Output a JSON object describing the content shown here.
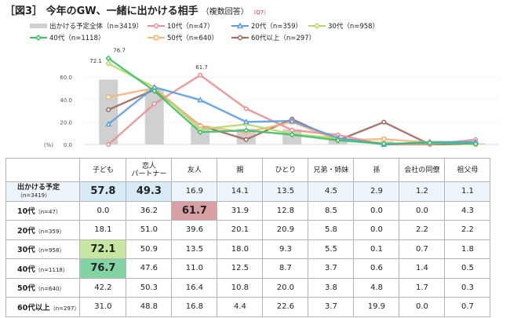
{
  "title": {
    "main": "［図3］ 今年のGW、一緒に出かける相手",
    "sub": "（複数回答）",
    "q": "（Q7）"
  },
  "colors": {
    "total": "#d0d0d0",
    "10s": "#e8908f",
    "20s": "#5c9fe0",
    "30s": "#b8d86a",
    "40s": "#3ec06a",
    "50s": "#f4b67a",
    "60s": "#a0695e",
    "hl_total": "#d7ebf7",
    "hl_10s": "#d8a0a4",
    "hl_30s": "#c6e6a1",
    "hl_40s": "#84d3a2"
  },
  "legend": [
    {
      "label": "出かける予定全体（n=3419）",
      "key": "total",
      "marker": "bar"
    },
    {
      "label": "10代（n=47）",
      "key": "10s",
      "marker": "circle"
    },
    {
      "label": "20代（n=359）",
      "key": "20s",
      "marker": "triangle"
    },
    {
      "label": "30代（n=958）",
      "key": "30s",
      "marker": "diamond"
    },
    {
      "label": "40代（n=1118）",
      "key": "40s",
      "marker": "diamond"
    },
    {
      "label": "50代（n=640）",
      "key": "50s",
      "marker": "square"
    },
    {
      "label": "60代以上（n=297）",
      "key": "60s",
      "marker": "circle"
    }
  ],
  "chart_data": {
    "type": "bar",
    "unit": "(%)",
    "ylim": [
      0,
      80
    ],
    "yticks": [
      "0.0",
      "20.0",
      "40.0",
      "60.0"
    ],
    "categories": [
      "子ども",
      "恋人\nパートナー",
      "友人",
      "親",
      "ひとり",
      "兄弟・姉妹",
      "孫",
      "会社の同僚",
      "祖父母"
    ],
    "bar_series": {
      "name": "出かける予定全体",
      "key": "total",
      "values": [
        57.8,
        49.3,
        16.9,
        14.1,
        13.5,
        4.5,
        2.9,
        1.2,
        1.1
      ]
    },
    "line_series": [
      {
        "name": "10代",
        "key": "10s",
        "marker": "circle",
        "values": [
          0.0,
          36.2,
          61.7,
          31.9,
          12.8,
          8.5,
          0.0,
          0.0,
          4.3
        ]
      },
      {
        "name": "20代",
        "key": "20s",
        "marker": "triangle",
        "values": [
          18.1,
          51.0,
          39.6,
          20.1,
          20.9,
          5.8,
          0.0,
          2.2,
          2.2
        ]
      },
      {
        "name": "30代",
        "key": "30s",
        "marker": "diamond",
        "values": [
          72.1,
          50.9,
          13.5,
          18.0,
          9.3,
          5.5,
          0.1,
          0.7,
          1.8
        ]
      },
      {
        "name": "40代",
        "key": "40s",
        "marker": "diamond",
        "values": [
          76.7,
          47.6,
          11.0,
          12.5,
          8.7,
          3.7,
          0.6,
          1.4,
          0.5
        ]
      },
      {
        "name": "50代",
        "key": "50s",
        "marker": "square",
        "values": [
          42.2,
          50.3,
          16.4,
          10.8,
          20.0,
          3.8,
          4.8,
          1.7,
          0.3
        ]
      },
      {
        "name": "60代以上",
        "key": "60s",
        "marker": "circle",
        "values": [
          31.0,
          48.8,
          16.8,
          4.4,
          22.6,
          3.7,
          19.9,
          0.0,
          0.7
        ]
      }
    ],
    "annotations": [
      {
        "text": "76.7",
        "series": "40代",
        "index": 0
      },
      {
        "text": "72.1",
        "series": "30代",
        "index": 0
      },
      {
        "text": "61.7",
        "series": "10代",
        "index": 2
      }
    ]
  },
  "table": {
    "headers": [
      "子ども",
      "恋人\nパートナー",
      "友人",
      "親",
      "ひとり",
      "兄弟・姉妹",
      "孫",
      "会社の同僚",
      "祖父母"
    ],
    "rows": [
      {
        "label": "出かける予定",
        "n": "（n=3419）",
        "key": "total",
        "cells": [
          "57.8",
          "49.3",
          "16.9",
          "14.1",
          "13.5",
          "4.5",
          "2.9",
          "1.2",
          "1.1"
        ],
        "highlight": [
          0,
          1
        ]
      },
      {
        "label": "10代",
        "n": "（n=47）",
        "key": "10s",
        "cells": [
          "0.0",
          "36.2",
          "61.7",
          "31.9",
          "12.8",
          "8.5",
          "0.0",
          "0.0",
          "4.3"
        ],
        "highlight": [
          2
        ]
      },
      {
        "label": "20代",
        "n": "（n=359）",
        "key": "20s",
        "cells": [
          "18.1",
          "51.0",
          "39.6",
          "20.1",
          "20.9",
          "5.8",
          "0.0",
          "2.2",
          "2.2"
        ],
        "highlight": []
      },
      {
        "label": "30代",
        "n": "（n=958）",
        "key": "30s",
        "cells": [
          "72.1",
          "50.9",
          "13.5",
          "18.0",
          "9.3",
          "5.5",
          "0.1",
          "0.7",
          "1.8"
        ],
        "highlight": [
          0
        ]
      },
      {
        "label": "40代",
        "n": "（n=1118）",
        "key": "40s",
        "cells": [
          "76.7",
          "47.6",
          "11.0",
          "12.5",
          "8.7",
          "3.7",
          "0.6",
          "1.4",
          "0.5"
        ],
        "highlight": [
          0
        ]
      },
      {
        "label": "50代",
        "n": "（n=640）",
        "key": "50s",
        "cells": [
          "42.2",
          "50.3",
          "16.4",
          "10.8",
          "20.0",
          "3.8",
          "4.8",
          "1.7",
          "0.3"
        ],
        "highlight": []
      },
      {
        "label": "60代以上",
        "n": "（n=297）",
        "key": "60s",
        "cells": [
          "31.0",
          "48.8",
          "16.8",
          "4.4",
          "22.6",
          "3.7",
          "19.9",
          "0.0",
          "0.7"
        ],
        "highlight": []
      }
    ]
  }
}
